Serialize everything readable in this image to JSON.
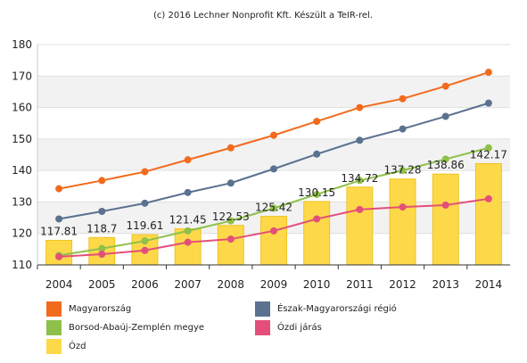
{
  "subtitle": "(c) 2016 Lechner Nonprofit Kft. Készült a TeIR-rel.",
  "colors": {
    "magyarorszag": "#f26b1d",
    "eszak": "#5a7190",
    "borsod": "#8ec04a",
    "ozdi_jaras": "#e34f7a",
    "ozd": "#fdd94a",
    "ozd_border": "#f0c21c",
    "band": "#f2f2f2"
  },
  "chart_data": {
    "type": "bar",
    "categories": [
      "2004",
      "2005",
      "2006",
      "2007",
      "2008",
      "2009",
      "2010",
      "2011",
      "2012",
      "2013",
      "2014"
    ],
    "ylim": [
      110,
      180
    ],
    "yticks": [
      110,
      120,
      130,
      140,
      150,
      160,
      170,
      180
    ],
    "grid": true,
    "legend_placement": "bottom",
    "bars": {
      "name": "Ózd",
      "values": [
        117.81,
        118.7,
        119.61,
        121.45,
        122.53,
        125.42,
        130.15,
        134.72,
        137.28,
        138.86,
        142.17
      ],
      "labels": [
        "117.81",
        "118.7",
        "119.61",
        "121.45",
        "122.53",
        "125.42",
        "130.15",
        "134.72",
        "137.28",
        "138.86",
        "142.17"
      ]
    },
    "series": [
      {
        "name": "Magyarország",
        "color_key": "magyarorszag",
        "values": [
          134.2,
          136.8,
          139.6,
          143.4,
          147.2,
          151.2,
          155.6,
          160.0,
          162.8,
          166.8,
          171.2
        ]
      },
      {
        "name": "Észak-Magyarországi régió",
        "color_key": "eszak",
        "values": [
          124.6,
          127.0,
          129.6,
          133.0,
          136.0,
          140.5,
          145.2,
          149.6,
          153.2,
          157.2,
          161.4
        ]
      },
      {
        "name": "Borsod-Abaúj-Zemplén megye",
        "color_key": "borsod",
        "values": [
          113.0,
          115.2,
          117.6,
          120.8,
          124.0,
          128.0,
          132.4,
          136.8,
          140.0,
          143.6,
          147.2
        ]
      },
      {
        "name": "Ózdi járás",
        "color_key": "ozdi_jaras",
        "values": [
          112.6,
          113.4,
          114.6,
          117.2,
          118.2,
          120.8,
          124.6,
          127.6,
          128.4,
          129.0,
          131.0
        ]
      }
    ]
  },
  "legend": [
    {
      "label": "Magyarország",
      "color_key": "magyarorszag"
    },
    {
      "label": "Észak-Magyarországi régió",
      "color_key": "eszak"
    },
    {
      "label": "Borsod-Abaúj-Zemplén megye",
      "color_key": "borsod"
    },
    {
      "label": "Ózdi járás",
      "color_key": "ozdi_jaras"
    },
    {
      "label": "Ózd",
      "color_key": "ozd"
    }
  ]
}
